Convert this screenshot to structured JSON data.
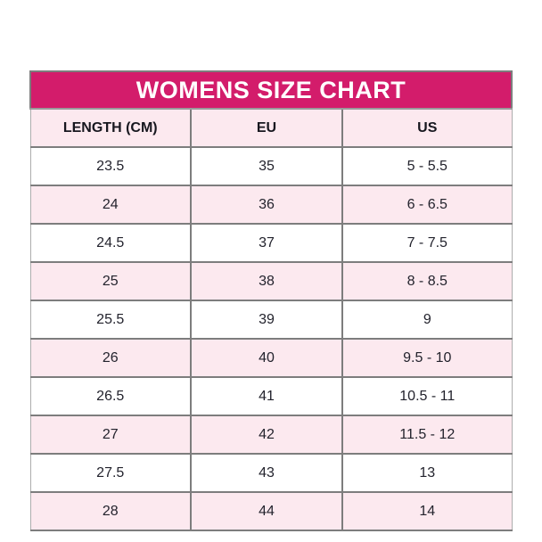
{
  "chart_data": {
    "type": "table",
    "title": "WOMENS SIZE CHART",
    "columns": [
      "LENGTH (CM)",
      "EU",
      "US"
    ],
    "rows": [
      [
        "23.5",
        "35",
        "5 - 5.5"
      ],
      [
        "24",
        "36",
        "6 - 6.5"
      ],
      [
        "24.5",
        "37",
        "7 - 7.5"
      ],
      [
        "25",
        "38",
        "8 - 8.5"
      ],
      [
        "25.5",
        "39",
        "9"
      ],
      [
        "26",
        "40",
        "9.5 - 10"
      ],
      [
        "26.5",
        "41",
        "10.5 - 11"
      ],
      [
        "27",
        "42",
        "11.5 - 12"
      ],
      [
        "27.5",
        "43",
        "13"
      ],
      [
        "28",
        "44",
        "14"
      ]
    ],
    "layout": {
      "alternating_row_colors": true,
      "row_alt_bg": "#fce9ef",
      "title_bg": "#d31c6b",
      "title_text_color": "#ffffff",
      "border_color": "#7d7d7d"
    }
  }
}
